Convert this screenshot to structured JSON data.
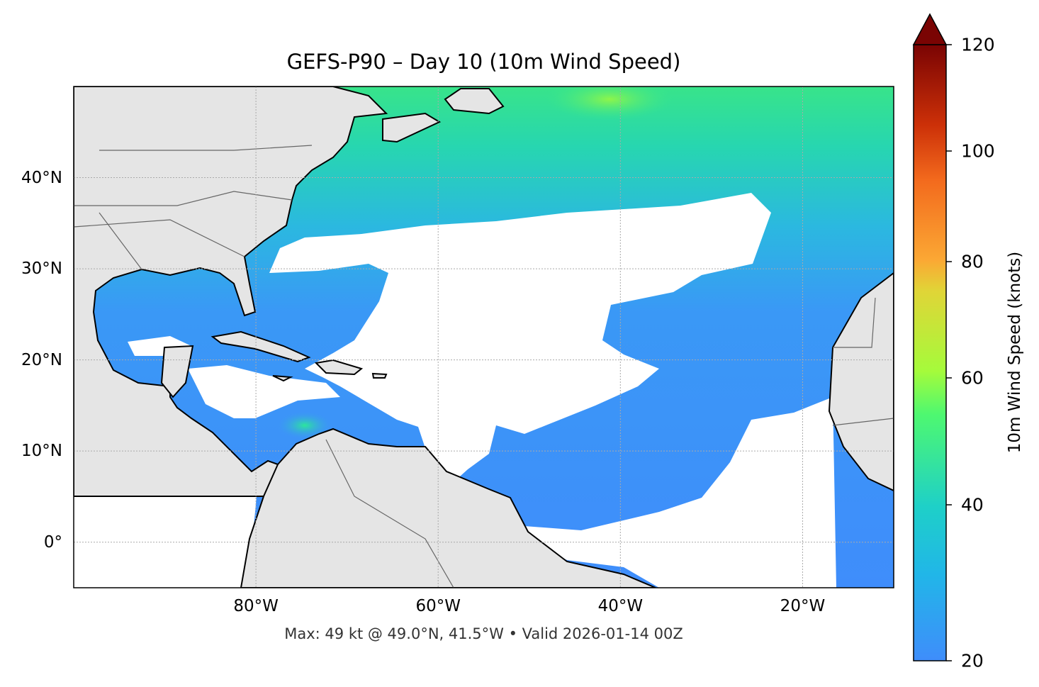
{
  "title": "GEFS-P90 – Day 10 (10m Wind Speed)",
  "footer": "Max: 49 kt @ 49.0°N, 41.5°W • Valid 2026-01-14 00Z",
  "map": {
    "extent": {
      "lon": [
        -100,
        -10
      ],
      "lat": [
        -5,
        50
      ]
    },
    "lat_ticks": [
      {
        "value": 40,
        "label": "40°N"
      },
      {
        "value": 30,
        "label": "30°N"
      },
      {
        "value": 20,
        "label": "20°N"
      },
      {
        "value": 10,
        "label": "10°N"
      },
      {
        "value": 0,
        "label": "0°"
      }
    ],
    "lon_ticks": [
      {
        "value": -80,
        "label": "80°W"
      },
      {
        "value": -60,
        "label": "60°W"
      },
      {
        "value": -40,
        "label": "40°W"
      },
      {
        "value": -20,
        "label": "20°W"
      }
    ],
    "gridlines": true,
    "land_color": "#e5e5e5",
    "calm_color": "#ffffff"
  },
  "colorbar": {
    "label": "10m Wind Speed (knots)",
    "ticks": [
      "20",
      "40",
      "60",
      "80",
      "100",
      "120"
    ],
    "range": [
      20,
      120
    ],
    "extend": "max",
    "colors": [
      "#3f8dfb",
      "#1ed0c8",
      "#2cf08f",
      "#a5fb3b",
      "#e0d537",
      "#fba834",
      "#f36a1d",
      "#cc3008",
      "#7a0403"
    ]
  },
  "max_point": {
    "value_kt": 49,
    "lat": 49.0,
    "lon": -41.5
  }
}
